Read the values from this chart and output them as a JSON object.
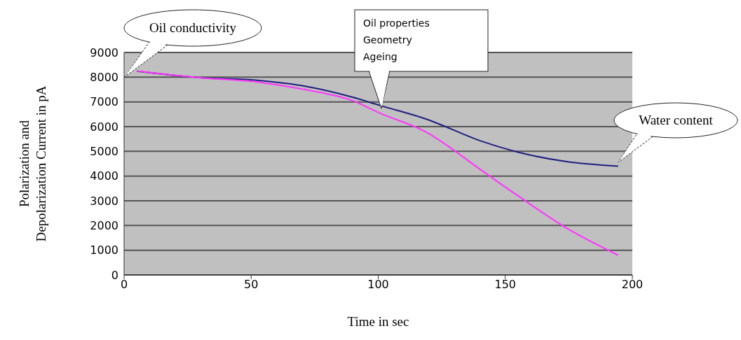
{
  "chart_data": {
    "type": "line",
    "xlabel": "Time in sec",
    "ylabel": "Polarization and\nDepolarization Current in pA",
    "xlim": [
      0,
      200
    ],
    "xticks": [
      0,
      50,
      100,
      150,
      200
    ],
    "ylim": [
      0,
      9000
    ],
    "yticks": [
      0,
      1000,
      2000,
      3000,
      4000,
      5000,
      6000,
      7000,
      8000,
      9000
    ],
    "grid": "y",
    "marker": "none",
    "line_style": "solid",
    "series": [
      {
        "color": "#1f1f80",
        "x": [
          5,
          28.4,
          53,
          71.6,
          90,
          100.6,
          118.5,
          141.5,
          155.3,
          173.7,
          194.4
        ],
        "values": [
          8240,
          7990,
          7870,
          7630,
          7190,
          6860,
          6320,
          5380,
          4960,
          4590,
          4400
        ]
      },
      {
        "color": "#ff33ff",
        "x": [
          5,
          28.4,
          53,
          71.6,
          90,
          100.6,
          118.5,
          141.5,
          155.3,
          173.7,
          194.4
        ],
        "values": [
          8250,
          7990,
          7800,
          7490,
          7050,
          6550,
          5800,
          4170,
          3180,
          1920,
          800
        ]
      }
    ],
    "annotations": [
      "Oil conductivity",
      "Oil properties\nGeometry\nAgeing",
      "Water content"
    ]
  }
}
